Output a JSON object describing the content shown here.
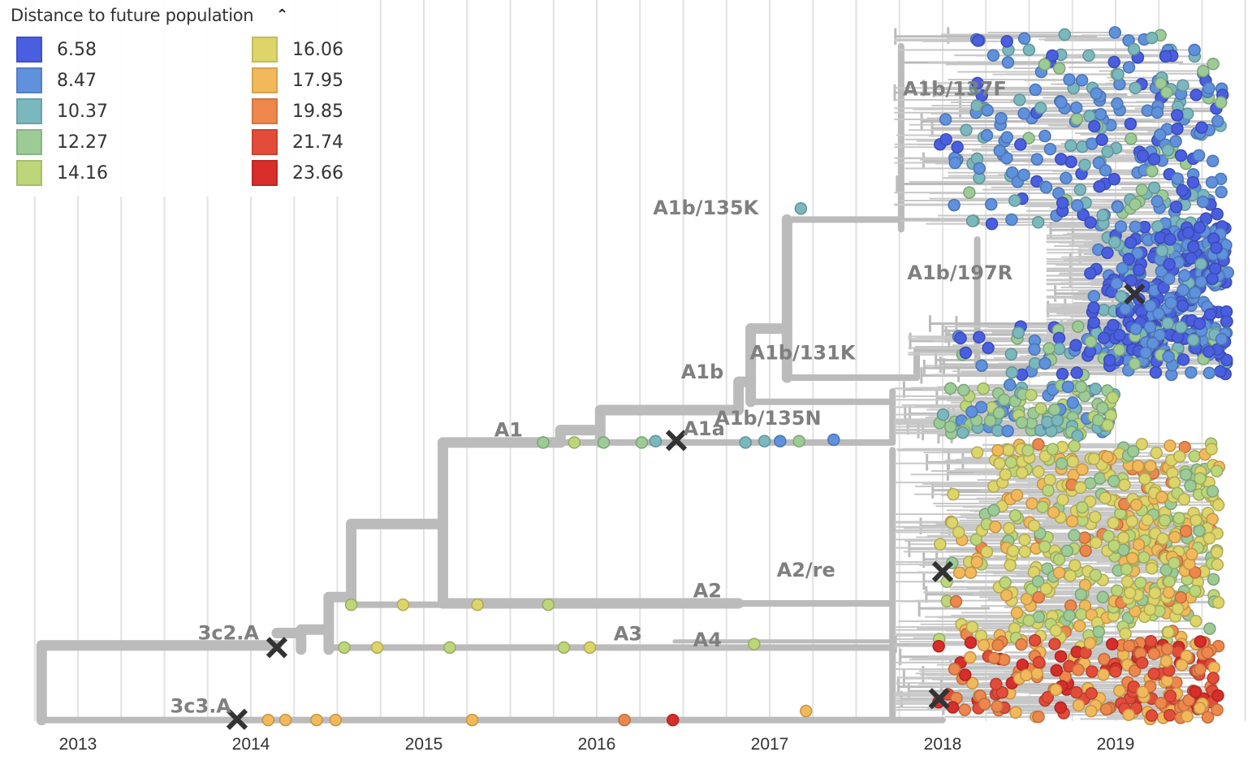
{
  "legend": {
    "title": "Distance to future population",
    "toggle_icon": "chevron-up-icon",
    "items": [
      {
        "value": "6.58",
        "color": "#4a5ee0"
      },
      {
        "value": "8.47",
        "color": "#5f91dd"
      },
      {
        "value": "10.37",
        "color": "#7bb8be"
      },
      {
        "value": "12.27",
        "color": "#9ccb96"
      },
      {
        "value": "14.16",
        "color": "#bdd67a"
      },
      {
        "value": "16.06",
        "color": "#ddd46a"
      },
      {
        "value": "17.95",
        "color": "#f2b95a"
      },
      {
        "value": "19.85",
        "color": "#ee874c"
      },
      {
        "value": "21.74",
        "color": "#e44c3a"
      },
      {
        "value": "23.66",
        "color": "#d72e2a"
      }
    ]
  },
  "chart_data": {
    "type": "tree",
    "title": "Distance to future population",
    "x_axis": {
      "label": "",
      "range": [
        2012.75,
        2019.75
      ],
      "ticks": [
        "2013",
        "2014",
        "2015",
        "2016",
        "2017",
        "2018",
        "2019"
      ]
    },
    "grid": true,
    "branch_color": "#bbbbbb",
    "branches": [
      {
        "rank": 0,
        "from": 2012.79,
        "to": 2014.15,
        "order": 88.8
      },
      {
        "rank": 1,
        "from": 2012.79,
        "to": 2018.0,
        "order": 99.6
      },
      {
        "rank": 0,
        "from": 2014.15,
        "to": 2014.29,
        "order": 87.0
      },
      {
        "rank": 0,
        "from": 2014.29,
        "to": 2014.45,
        "order": 86.5
      },
      {
        "rank": 1,
        "from": 2014.45,
        "to": 2017.71,
        "order": 89.1
      },
      {
        "rank": 0,
        "from": 2014.45,
        "to": 2014.58,
        "order": 81.8
      },
      {
        "rank": 0,
        "from": 2014.58,
        "to": 2015.11,
        "order": 71.2
      },
      {
        "rank": 1,
        "from": 2014.58,
        "to": 2015.15,
        "order": 82.9
      },
      {
        "rank": 0,
        "from": 2015.11,
        "to": 2016.82,
        "order": 82.7
      },
      {
        "rank": 1,
        "from": 2016.82,
        "to": 2017.71,
        "order": 82.7
      },
      {
        "rank": 0,
        "from": 2015.11,
        "to": 2015.79,
        "order": 59.4
      },
      {
        "rank": 1,
        "from": 2015.79,
        "to": 2017.71,
        "order": 59.4
      },
      {
        "rank": 0,
        "from": 2015.79,
        "to": 2016.02,
        "order": 57.6
      },
      {
        "rank": 0,
        "from": 2016.02,
        "to": 2016.82,
        "order": 54.7
      },
      {
        "rank": 0,
        "from": 2016.82,
        "to": 2016.89,
        "order": 50.6
      },
      {
        "rank": 1,
        "from": 2016.89,
        "to": 2017.71,
        "order": 53.5
      },
      {
        "rank": 0,
        "from": 2016.89,
        "to": 2017.1,
        "order": 42.9
      },
      {
        "rank": 1,
        "from": 2017.1,
        "to": 2017.76,
        "order": 27.1
      },
      {
        "rank": 1,
        "from": 2017.1,
        "to": 2017.85,
        "order": 50.0
      },
      {
        "rank": 1,
        "from": 2017.85,
        "to": 2018.2,
        "order": 45.9
      },
      {
        "rank": 2,
        "from": 2016.45,
        "to": 2017.71,
        "order": 88.2
      }
    ],
    "verticals": [
      {
        "rank": 0,
        "at": 2012.79,
        "orders": [
          88.8,
          99.6
        ]
      },
      {
        "rank": 0,
        "at": 2014.29,
        "orders": [
          86.5,
          89.4
        ]
      },
      {
        "rank": 0,
        "at": 2014.45,
        "orders": [
          81.8,
          89.4
        ]
      },
      {
        "rank": 0,
        "at": 2014.58,
        "orders": [
          71.2,
          82.9
        ]
      },
      {
        "rank": 0,
        "at": 2015.11,
        "orders": [
          59.4,
          82.7
        ]
      },
      {
        "rank": 0,
        "at": 2015.79,
        "orders": [
          57.6,
          59.4
        ]
      },
      {
        "rank": 0,
        "at": 2016.02,
        "orders": [
          54.7,
          59.4
        ]
      },
      {
        "rank": 0,
        "at": 2016.82,
        "orders": [
          50.6,
          54.7
        ]
      },
      {
        "rank": 0,
        "at": 2016.89,
        "orders": [
          42.9,
          53.5
        ]
      },
      {
        "rank": 0,
        "at": 2017.1,
        "orders": [
          27.1,
          50.0
        ]
      },
      {
        "rank": 1,
        "at": 2017.85,
        "orders": [
          45.9,
          50.0
        ]
      },
      {
        "rank": 1,
        "at": 2017.71,
        "orders": [
          60.5,
          89.1
        ]
      },
      {
        "rank": 1,
        "at": 2017.76,
        "orders": [
          2.0,
          28.5
        ]
      },
      {
        "rank": 1,
        "at": 2018.2,
        "orders": [
          30.0,
          48.0
        ]
      },
      {
        "rank": 1,
        "at": 2017.71,
        "orders": [
          52.0,
          59.4
        ]
      },
      {
        "rank": 1,
        "at": 2017.71,
        "orders": [
          89.5,
          99.6
        ]
      }
    ],
    "single_tips": [
      {
        "date": 2014.1,
        "order": 99.6,
        "c": 6
      },
      {
        "date": 2014.2,
        "order": 99.6,
        "c": 6
      },
      {
        "date": 2014.38,
        "order": 99.6,
        "c": 6
      },
      {
        "date": 2014.49,
        "order": 99.6,
        "c": 6
      },
      {
        "date": 2015.28,
        "order": 99.6,
        "c": 6
      },
      {
        "date": 2016.16,
        "order": 99.6,
        "c": 7
      },
      {
        "date": 2016.44,
        "order": 99.6,
        "c": 9
      },
      {
        "date": 2017.21,
        "order": 98.3,
        "c": 6
      },
      {
        "date": 2014.54,
        "order": 89.1,
        "c": 4
      },
      {
        "date": 2014.73,
        "order": 89.1,
        "c": 5
      },
      {
        "date": 2015.15,
        "order": 89.1,
        "c": 4
      },
      {
        "date": 2015.81,
        "order": 89.1,
        "c": 4
      },
      {
        "date": 2015.96,
        "order": 89.1,
        "c": 5
      },
      {
        "date": 2014.58,
        "order": 82.9,
        "c": 4
      },
      {
        "date": 2014.88,
        "order": 82.9,
        "c": 5
      },
      {
        "date": 2015.31,
        "order": 82.9,
        "c": 5
      },
      {
        "date": 2015.72,
        "order": 82.9,
        "c": 4
      },
      {
        "date": 2015.69,
        "order": 59.4,
        "c": 3
      },
      {
        "date": 2015.87,
        "order": 59.4,
        "c": 4
      },
      {
        "date": 2016.04,
        "order": 59.4,
        "c": 3
      },
      {
        "date": 2016.26,
        "order": 59.4,
        "c": 3
      },
      {
        "date": 2016.34,
        "order": 59.2,
        "c": 2
      },
      {
        "date": 2016.86,
        "order": 59.4,
        "c": 2
      },
      {
        "date": 2016.97,
        "order": 59.2,
        "c": 2
      },
      {
        "date": 2017.06,
        "order": 59.2,
        "c": 1
      },
      {
        "date": 2017.17,
        "order": 59.2,
        "c": 3
      },
      {
        "date": 2017.37,
        "order": 59.0,
        "c": 1
      },
      {
        "date": 2016.91,
        "order": 88.6,
        "c": 4
      },
      {
        "date": 2017.18,
        "order": 25.5,
        "c": 2
      }
    ],
    "tip_groups": [
      {
        "clade": "A1b/135K",
        "count": 260,
        "dates": [
          2017.72,
          2019.62
        ],
        "orders": [
          0,
          28
        ],
        "colors": [
          0,
          0,
          1,
          1,
          1,
          2,
          2,
          3
        ]
      },
      {
        "clade": "A1b/197R",
        "count": 300,
        "dates": [
          2018.6,
          2019.65
        ],
        "orders": [
          28,
          48
        ],
        "colors": [
          0,
          0,
          0,
          1,
          1,
          1,
          2
        ]
      },
      {
        "clade": "A1b/131K",
        "count": 90,
        "dates": [
          2017.8,
          2019.65
        ],
        "orders": [
          42,
          50
        ],
        "colors": [
          0,
          1,
          1,
          2,
          3
        ]
      },
      {
        "clade": "A1b/135N",
        "count": 110,
        "dates": [
          2017.72,
          2019.0
        ],
        "orders": [
          51,
          58.5
        ],
        "colors": [
          1,
          2,
          2,
          3,
          3,
          4
        ]
      },
      {
        "clade": "A2/re",
        "count": 480,
        "dates": [
          2017.72,
          2019.6
        ],
        "orders": [
          59.5,
          89
        ],
        "colors": [
          4,
          4,
          5,
          5,
          5,
          5,
          6,
          6,
          7,
          3
        ]
      },
      {
        "clade": "3c3.A",
        "count": 200,
        "dates": [
          2017.72,
          2019.6
        ],
        "orders": [
          88,
          99.5
        ],
        "colors": [
          6,
          6,
          7,
          7,
          7,
          8,
          8,
          9
        ]
      }
    ],
    "clade_labels": [
      {
        "text": "A1b/137F",
        "date": 2018.07,
        "order": 8.2
      },
      {
        "text": "A1b/135K",
        "date": 2016.63,
        "order": 25.4
      },
      {
        "text": "A1b/197R",
        "date": 2018.1,
        "order": 34.8
      },
      {
        "text": "A1b/131K",
        "date": 2017.19,
        "order": 46.4
      },
      {
        "text": "A1b",
        "date": 2016.61,
        "order": 49.2
      },
      {
        "text": "A1b/135N",
        "date": 2016.99,
        "order": 55.9
      },
      {
        "text": "A1",
        "date": 2015.49,
        "order": 57.6
      },
      {
        "text": "A1a",
        "date": 2016.62,
        "order": 57.4
      },
      {
        "text": "A2/re",
        "date": 2017.21,
        "order": 77.9
      },
      {
        "text": "A2",
        "date": 2016.64,
        "order": 80.9
      },
      {
        "text": "A3",
        "date": 2016.18,
        "order": 87.1
      },
      {
        "text": "A4",
        "date": 2016.64,
        "order": 88.0
      },
      {
        "text": "3c2.A",
        "date": 2013.87,
        "order": 87.0
      },
      {
        "text": "3c3.A",
        "date": 2013.71,
        "order": 97.6
      }
    ],
    "mutation_markers": [
      {
        "date": 2013.92,
        "order": 99.5
      },
      {
        "date": 2014.15,
        "order": 89.1
      },
      {
        "date": 2016.46,
        "order": 59.1
      },
      {
        "date": 2019.11,
        "order": 37.9
      },
      {
        "date": 2018.0,
        "order": 78.1
      },
      {
        "date": 2017.98,
        "order": 96.5
      }
    ]
  }
}
